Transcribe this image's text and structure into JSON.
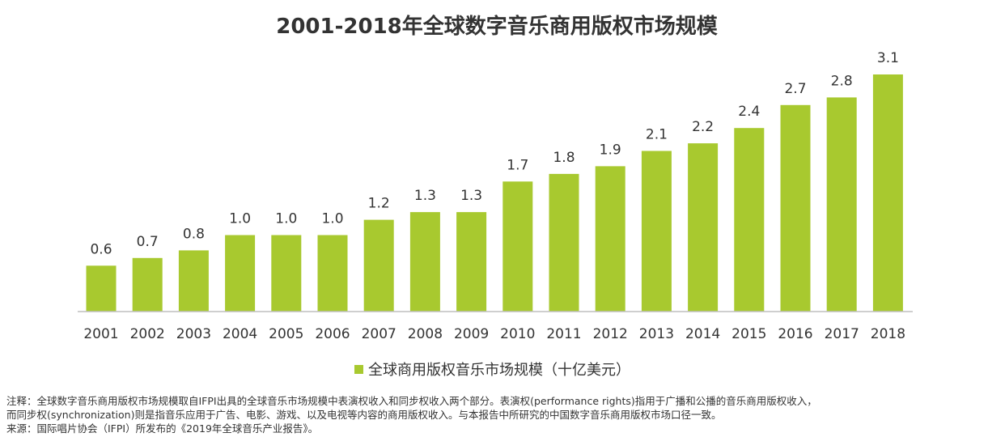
{
  "chart_data": {
    "type": "bar",
    "title": "2001-2018年全球数字音乐商用版权市场规模",
    "categories": [
      "2001",
      "2002",
      "2003",
      "2004",
      "2005",
      "2006",
      "2007",
      "2008",
      "2009",
      "2010",
      "2011",
      "2012",
      "2013",
      "2014",
      "2015",
      "2016",
      "2017",
      "2018"
    ],
    "series": [
      {
        "name": "全球商用版权音乐市场规模（十亿美元）",
        "values": [
          0.6,
          0.7,
          0.8,
          1.0,
          1.0,
          1.0,
          1.2,
          1.3,
          1.3,
          1.7,
          1.8,
          1.9,
          2.1,
          2.2,
          2.4,
          2.7,
          2.8,
          3.1
        ],
        "labels": [
          "0.6",
          "0.7",
          "0.8",
          "1.0",
          "1.0",
          "1.0",
          "1.2",
          "1.3",
          "1.3",
          "1.7",
          "1.8",
          "1.9",
          "2.1",
          "2.2",
          "2.4",
          "2.7",
          "2.8",
          "3.1"
        ]
      }
    ],
    "ylim": [
      0,
      3.1
    ],
    "grid": false,
    "legend_position": "bottom",
    "bar_color": "#a8c92f"
  },
  "notes": {
    "line1": "注释：全球数字音乐商用版权市场规模取自IFPI出具的全球音乐市场规模中表演权收入和同步权收入两个部分。表演权(performance rights)指用于广播和公播的音乐商用版权收入，",
    "line2": "而同步权(synchronization)则是指音乐应用于广告、电影、游戏、以及电视等内容的商用版权收入。与本报告中所研究的中国数字音乐商用版权市场口径一致。",
    "line3": "来源：国际唱片协会（IFPI）所发布的《2019年全球音乐产业报告》。"
  }
}
